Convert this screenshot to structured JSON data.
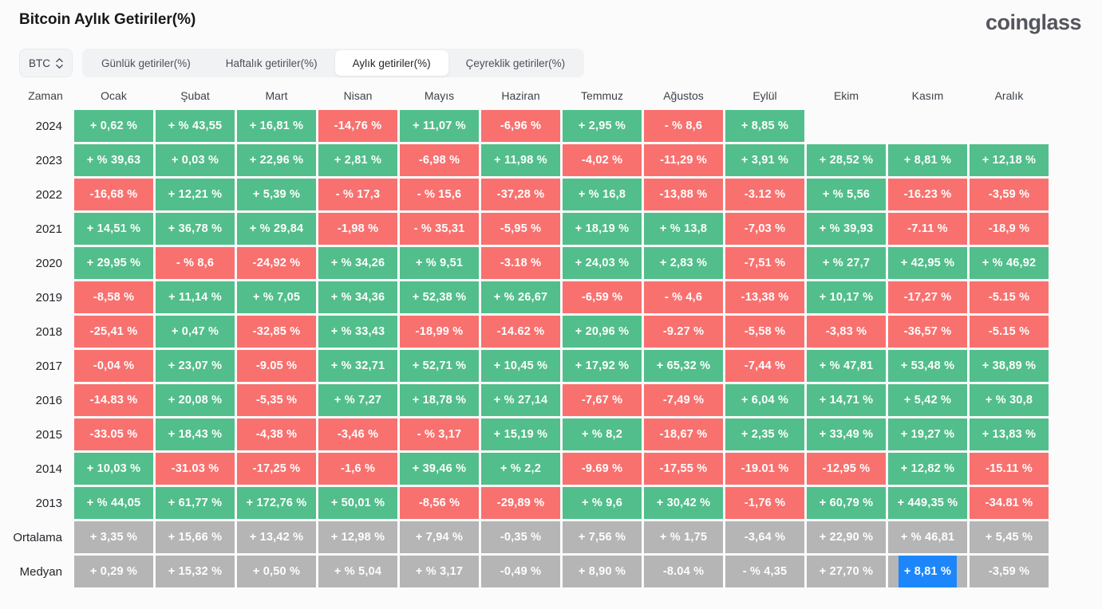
{
  "page": {
    "title": "Bitcoin Aylık Getiriler(%)",
    "logo": "coinglass"
  },
  "toolbar": {
    "symbol": "BTC",
    "tabs": [
      {
        "label": "Günlük getiriler(%)",
        "active": false
      },
      {
        "label": "Haftalık getiriler(%)",
        "active": false
      },
      {
        "label": "Aylık getiriler(%)",
        "active": true
      },
      {
        "label": "Çeyreklik getiriler(%)",
        "active": false
      }
    ]
  },
  "colors": {
    "positive": "#52be8b",
    "negative": "#f8716f",
    "neutral": "#b5b5b5",
    "highlight_blue": "#1d86fb"
  },
  "chart_data": {
    "type": "heatmap",
    "title": "Bitcoin Aylık Getiriler(%)",
    "legend": "pos=green gain, neg=red loss, avg=gray summary, empty=no data, hl=blue selected",
    "columns": [
      "Zaman",
      "Ocak",
      "Şubat",
      "Mart",
      "Nisan",
      "Mayıs",
      "Haziran",
      "Temmuz",
      "Ağustos",
      "Eylül",
      "Ekim",
      "Kasım",
      "Aralık"
    ],
    "rows": [
      {
        "label": "2024",
        "cells": [
          {
            "t": "+ 0,62 %",
            "c": "pos"
          },
          {
            "t": "+ % 43,55",
            "c": "pos"
          },
          {
            "t": "+ 16,81 %",
            "c": "pos"
          },
          {
            "t": "-14,76 %",
            "c": "neg"
          },
          {
            "t": "+ 11,07 %",
            "c": "pos"
          },
          {
            "t": "-6,96 %",
            "c": "neg"
          },
          {
            "t": "+ 2,95 %",
            "c": "pos"
          },
          {
            "t": "- % 8,6",
            "c": "neg"
          },
          {
            "t": "+ 8,85 %",
            "c": "pos"
          },
          {
            "t": "",
            "c": "empty"
          },
          {
            "t": "",
            "c": "empty"
          },
          {
            "t": "",
            "c": "empty"
          }
        ]
      },
      {
        "label": "2023",
        "cells": [
          {
            "t": "+ % 39,63",
            "c": "pos"
          },
          {
            "t": "+ 0,03 %",
            "c": "pos"
          },
          {
            "t": "+ 22,96 %",
            "c": "pos"
          },
          {
            "t": "+ 2,81 %",
            "c": "pos"
          },
          {
            "t": "-6,98 %",
            "c": "neg"
          },
          {
            "t": "+ 11,98 %",
            "c": "pos"
          },
          {
            "t": "-4,02 %",
            "c": "neg"
          },
          {
            "t": "-11,29 %",
            "c": "neg"
          },
          {
            "t": "+ 3,91 %",
            "c": "pos"
          },
          {
            "t": "+ 28,52 %",
            "c": "pos"
          },
          {
            "t": "+ 8,81 %",
            "c": "pos"
          },
          {
            "t": "+ 12,18 %",
            "c": "pos"
          }
        ]
      },
      {
        "label": "2022",
        "cells": [
          {
            "t": "-16,68 %",
            "c": "neg"
          },
          {
            "t": "+ 12,21 %",
            "c": "pos"
          },
          {
            "t": "+ 5,39 %",
            "c": "pos"
          },
          {
            "t": "- % 17,3",
            "c": "neg"
          },
          {
            "t": "- % 15,6",
            "c": "neg"
          },
          {
            "t": "-37,28 %",
            "c": "neg"
          },
          {
            "t": "+ % 16,8",
            "c": "pos"
          },
          {
            "t": "-13,88 %",
            "c": "neg"
          },
          {
            "t": "-3.12 %",
            "c": "neg"
          },
          {
            "t": "+ % 5,56",
            "c": "pos"
          },
          {
            "t": "-16.23 %",
            "c": "neg"
          },
          {
            "t": "-3,59 %",
            "c": "neg"
          }
        ]
      },
      {
        "label": "2021",
        "cells": [
          {
            "t": "+ 14,51 %",
            "c": "pos"
          },
          {
            "t": "+ 36,78 %",
            "c": "pos"
          },
          {
            "t": "+ % 29,84",
            "c": "pos"
          },
          {
            "t": "-1,98 %",
            "c": "neg"
          },
          {
            "t": "- % 35,31",
            "c": "neg"
          },
          {
            "t": "-5,95 %",
            "c": "neg"
          },
          {
            "t": "+ 18,19 %",
            "c": "pos"
          },
          {
            "t": "+ % 13,8",
            "c": "pos"
          },
          {
            "t": "-7,03 %",
            "c": "neg"
          },
          {
            "t": "+ % 39,93",
            "c": "pos"
          },
          {
            "t": "-7.11 %",
            "c": "neg"
          },
          {
            "t": "-18,9 %",
            "c": "neg"
          }
        ]
      },
      {
        "label": "2020",
        "cells": [
          {
            "t": "+ 29,95 %",
            "c": "pos"
          },
          {
            "t": "- % 8,6",
            "c": "neg"
          },
          {
            "t": "-24,92 %",
            "c": "neg"
          },
          {
            "t": "+ % 34,26",
            "c": "pos"
          },
          {
            "t": "+ % 9,51",
            "c": "pos"
          },
          {
            "t": "-3.18 %",
            "c": "neg"
          },
          {
            "t": "+ 24,03 %",
            "c": "pos"
          },
          {
            "t": "+ 2,83 %",
            "c": "pos"
          },
          {
            "t": "-7,51 %",
            "c": "neg"
          },
          {
            "t": "+ % 27,7",
            "c": "pos"
          },
          {
            "t": "+ 42,95 %",
            "c": "pos"
          },
          {
            "t": "+ % 46,92",
            "c": "pos"
          }
        ]
      },
      {
        "label": "2019",
        "cells": [
          {
            "t": "-8,58 %",
            "c": "neg"
          },
          {
            "t": "+ 11,14 %",
            "c": "pos"
          },
          {
            "t": "+ % 7,05",
            "c": "pos"
          },
          {
            "t": "+ % 34,36",
            "c": "pos"
          },
          {
            "t": "+ 52,38 %",
            "c": "pos"
          },
          {
            "t": "+ % 26,67",
            "c": "pos"
          },
          {
            "t": "-6,59 %",
            "c": "neg"
          },
          {
            "t": "- % 4,6",
            "c": "neg"
          },
          {
            "t": "-13,38 %",
            "c": "neg"
          },
          {
            "t": "+ 10,17 %",
            "c": "pos"
          },
          {
            "t": "-17,27 %",
            "c": "neg"
          },
          {
            "t": "-5.15 %",
            "c": "neg"
          }
        ]
      },
      {
        "label": "2018",
        "cells": [
          {
            "t": "-25,41 %",
            "c": "neg"
          },
          {
            "t": "+ 0,47 %",
            "c": "pos"
          },
          {
            "t": "-32,85 %",
            "c": "neg"
          },
          {
            "t": "+ % 33,43",
            "c": "pos"
          },
          {
            "t": "-18,99 %",
            "c": "neg"
          },
          {
            "t": "-14.62 %",
            "c": "neg"
          },
          {
            "t": "+ 20,96 %",
            "c": "pos"
          },
          {
            "t": "-9.27 %",
            "c": "neg"
          },
          {
            "t": "-5,58 %",
            "c": "neg"
          },
          {
            "t": "-3,83 %",
            "c": "neg"
          },
          {
            "t": "-36,57 %",
            "c": "neg"
          },
          {
            "t": "-5.15 %",
            "c": "neg"
          }
        ]
      },
      {
        "label": "2017",
        "cells": [
          {
            "t": "-0,04 %",
            "c": "neg"
          },
          {
            "t": "+ 23,07 %",
            "c": "pos"
          },
          {
            "t": "-9.05 %",
            "c": "neg"
          },
          {
            "t": "+ % 32,71",
            "c": "pos"
          },
          {
            "t": "+ 52,71 %",
            "c": "pos"
          },
          {
            "t": "+ 10,45 %",
            "c": "pos"
          },
          {
            "t": "+ 17,92 %",
            "c": "pos"
          },
          {
            "t": "+ 65,32 %",
            "c": "pos"
          },
          {
            "t": "-7,44 %",
            "c": "neg"
          },
          {
            "t": "+ % 47,81",
            "c": "pos"
          },
          {
            "t": "+ 53,48 %",
            "c": "pos"
          },
          {
            "t": "+ 38,89 %",
            "c": "pos"
          }
        ]
      },
      {
        "label": "2016",
        "cells": [
          {
            "t": "-14.83 %",
            "c": "neg"
          },
          {
            "t": "+ 20,08 %",
            "c": "pos"
          },
          {
            "t": "-5,35 %",
            "c": "neg"
          },
          {
            "t": "+ % 7,27",
            "c": "pos"
          },
          {
            "t": "+ 18,78 %",
            "c": "pos"
          },
          {
            "t": "+ % 27,14",
            "c": "pos"
          },
          {
            "t": "-7,67 %",
            "c": "neg"
          },
          {
            "t": "-7,49 %",
            "c": "neg"
          },
          {
            "t": "+ 6,04 %",
            "c": "pos"
          },
          {
            "t": "+ 14,71 %",
            "c": "pos"
          },
          {
            "t": "+ 5,42 %",
            "c": "pos"
          },
          {
            "t": "+ % 30,8",
            "c": "pos"
          }
        ]
      },
      {
        "label": "2015",
        "cells": [
          {
            "t": "-33.05 %",
            "c": "neg"
          },
          {
            "t": "+ 18,43 %",
            "c": "pos"
          },
          {
            "t": "-4,38 %",
            "c": "neg"
          },
          {
            "t": "-3,46 %",
            "c": "neg"
          },
          {
            "t": "- % 3,17",
            "c": "neg"
          },
          {
            "t": "+ 15,19 %",
            "c": "pos"
          },
          {
            "t": "+ % 8,2",
            "c": "pos"
          },
          {
            "t": "-18,67 %",
            "c": "neg"
          },
          {
            "t": "+ 2,35 %",
            "c": "pos"
          },
          {
            "t": "+ 33,49 %",
            "c": "pos"
          },
          {
            "t": "+ 19,27 %",
            "c": "pos"
          },
          {
            "t": "+ 13,83 %",
            "c": "pos"
          }
        ]
      },
      {
        "label": "2014",
        "cells": [
          {
            "t": "+ 10,03 %",
            "c": "pos"
          },
          {
            "t": "-31.03 %",
            "c": "neg"
          },
          {
            "t": "-17,25 %",
            "c": "neg"
          },
          {
            "t": "-1,6 %",
            "c": "neg"
          },
          {
            "t": "+ 39,46 %",
            "c": "pos"
          },
          {
            "t": "+ % 2,2",
            "c": "pos"
          },
          {
            "t": "-9.69 %",
            "c": "neg"
          },
          {
            "t": "-17,55 %",
            "c": "neg"
          },
          {
            "t": "-19.01 %",
            "c": "neg"
          },
          {
            "t": "-12,95 %",
            "c": "neg"
          },
          {
            "t": "+ 12,82 %",
            "c": "pos"
          },
          {
            "t": "-15.11 %",
            "c": "neg"
          }
        ]
      },
      {
        "label": "2013",
        "cells": [
          {
            "t": "+ % 44,05",
            "c": "pos"
          },
          {
            "t": "+ 61,77 %",
            "c": "pos"
          },
          {
            "t": "+ 172,76 %",
            "c": "pos"
          },
          {
            "t": "+ 50,01 %",
            "c": "pos"
          },
          {
            "t": "-8,56 %",
            "c": "neg"
          },
          {
            "t": "-29,89 %",
            "c": "neg"
          },
          {
            "t": "+ % 9,6",
            "c": "pos"
          },
          {
            "t": "+ 30,42 %",
            "c": "pos"
          },
          {
            "t": "-1,76 %",
            "c": "neg"
          },
          {
            "t": "+ 60,79 %",
            "c": "pos"
          },
          {
            "t": "+ 449,35 %",
            "c": "pos"
          },
          {
            "t": "-34.81 %",
            "c": "neg"
          }
        ]
      },
      {
        "label": "Ortalama",
        "cells": [
          {
            "t": "+ 3,35 %",
            "c": "avg"
          },
          {
            "t": "+ 15,66 %",
            "c": "avg"
          },
          {
            "t": "+ 13,42 %",
            "c": "avg"
          },
          {
            "t": "+ 12,98 %",
            "c": "avg"
          },
          {
            "t": "+ 7,94 %",
            "c": "avg"
          },
          {
            "t": "-0,35 %",
            "c": "avg"
          },
          {
            "t": "+ 7,56 %",
            "c": "avg"
          },
          {
            "t": "+ % 1,75",
            "c": "avg"
          },
          {
            "t": "-3,64 %",
            "c": "avg"
          },
          {
            "t": "+ 22,90 %",
            "c": "avg"
          },
          {
            "t": "+ % 46,81",
            "c": "avg"
          },
          {
            "t": "+ 5,45 %",
            "c": "avg"
          }
        ]
      },
      {
        "label": "Medyan",
        "cells": [
          {
            "t": "+ 0,29 %",
            "c": "avg"
          },
          {
            "t": "+ 15,32 %",
            "c": "avg"
          },
          {
            "t": "+ 0,50 %",
            "c": "avg"
          },
          {
            "t": "+ % 5,04",
            "c": "avg"
          },
          {
            "t": "+ % 3,17",
            "c": "avg"
          },
          {
            "t": "-0,49 %",
            "c": "avg"
          },
          {
            "t": "+ 8,90 %",
            "c": "avg"
          },
          {
            "t": "-8.04 %",
            "c": "avg"
          },
          {
            "t": "- % 4,35",
            "c": "avg"
          },
          {
            "t": "+ 27,70 %",
            "c": "avg"
          },
          {
            "t": "+ 8,81 %",
            "c": "avg",
            "hl": true
          },
          {
            "t": "-3,59 %",
            "c": "avg"
          }
        ]
      }
    ]
  }
}
